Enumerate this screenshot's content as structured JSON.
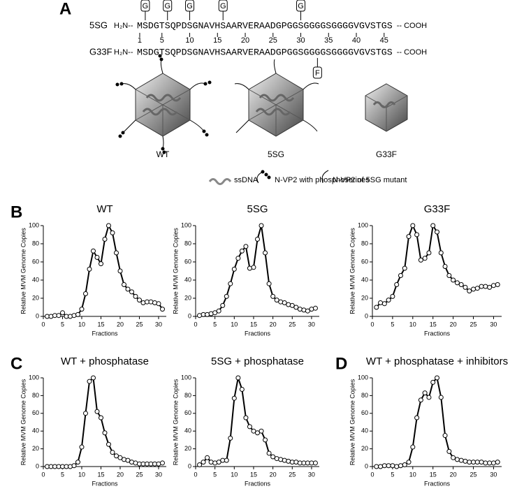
{
  "panel_a": {
    "label": "A",
    "n_term": "H₂N--",
    "c_term": "-- COOH",
    "rows": [
      {
        "name": "5SG",
        "sequence": "MSDGTSQPDSGNAVHSAARVERAADGPGGSGGGGSGGGGVGVSTGS",
        "boxes": [
          {
            "label": "G",
            "position": 2
          },
          {
            "label": "G",
            "position": 6
          },
          {
            "label": "G",
            "position": 10
          },
          {
            "label": "G",
            "position": 16
          },
          {
            "label": "G",
            "position": 30
          }
        ]
      },
      {
        "name": "G33F",
        "sequence": "MSDGTSQPDSGNAVHSAARVERAADGPGGSGGGGSGGGGVGVSTGS",
        "boxes": [
          {
            "label": "F",
            "position": 33
          }
        ]
      }
    ],
    "numbering": [
      1,
      5,
      10,
      15,
      20,
      25,
      30,
      35,
      40,
      45
    ],
    "capsids": [
      "WT",
      "5SG",
      "G33F"
    ],
    "legend": [
      "ssDNA",
      "N-VP2 with phosphoserines",
      "N-VP2 of 5SG mutant"
    ]
  },
  "panel_labels": [
    "B",
    "C",
    "D"
  ],
  "chart_data": [
    {
      "type": "line",
      "title": "WT",
      "x_label": "Fractions",
      "y_label": "Relative MVM Genome Copies",
      "color": "#000000",
      "x": [
        1,
        2,
        3,
        4,
        5,
        6,
        7,
        8,
        9,
        10,
        11,
        12,
        13,
        14,
        15,
        16,
        17,
        18,
        19,
        20,
        21,
        22,
        23,
        24,
        25,
        26,
        27,
        28,
        29,
        30,
        31
      ],
      "values": [
        0,
        0,
        1,
        1,
        4,
        0,
        0,
        1,
        2,
        8,
        25,
        52,
        72,
        65,
        58,
        85,
        100,
        92,
        70,
        50,
        35,
        30,
        27,
        22,
        18,
        15,
        16,
        16,
        15,
        14,
        8
      ],
      "xlim": [
        0,
        32
      ],
      "xticks": [
        0,
        5,
        10,
        15,
        20,
        25,
        30
      ],
      "ylim": [
        0,
        100
      ],
      "yticks": [
        0,
        20,
        40,
        60,
        80,
        100
      ]
    },
    {
      "type": "line",
      "title": "5SG",
      "x_label": "Fractions",
      "y_label": "Relative MVM Genome Copies",
      "color": "#000000",
      "x": [
        1,
        2,
        3,
        4,
        5,
        6,
        7,
        8,
        9,
        10,
        11,
        12,
        13,
        14,
        15,
        16,
        17,
        18,
        19,
        20,
        21,
        22,
        23,
        24,
        25,
        26,
        27,
        28,
        29,
        30,
        31
      ],
      "values": [
        1,
        2,
        2,
        3,
        4,
        6,
        12,
        22,
        36,
        52,
        64,
        72,
        77,
        53,
        54,
        85,
        100,
        70,
        36,
        22,
        18,
        16,
        15,
        13,
        12,
        10,
        8,
        7,
        6,
        8,
        9
      ],
      "xlim": [
        0,
        32
      ],
      "xticks": [
        0,
        5,
        10,
        15,
        20,
        25,
        30
      ],
      "ylim": [
        0,
        100
      ],
      "yticks": [
        0,
        20,
        40,
        60,
        80,
        100
      ]
    },
    {
      "type": "line",
      "title": "G33F",
      "x_label": "Fractions",
      "y_label": "Relative MVM Genome Copies",
      "color": "#000000",
      "x": [
        1,
        2,
        3,
        4,
        5,
        6,
        7,
        8,
        9,
        10,
        11,
        12,
        13,
        14,
        15,
        16,
        17,
        18,
        19,
        20,
        21,
        22,
        23,
        24,
        25,
        26,
        27,
        28,
        29,
        30,
        31
      ],
      "values": [
        10,
        15,
        14,
        18,
        22,
        35,
        45,
        53,
        88,
        100,
        90,
        62,
        64,
        70,
        100,
        93,
        70,
        55,
        45,
        40,
        37,
        35,
        32,
        28,
        30,
        31,
        33,
        33,
        32,
        34,
        35
      ],
      "xlim": [
        0,
        32
      ],
      "xticks": [
        0,
        5,
        10,
        15,
        20,
        25,
        30
      ],
      "ylim": [
        0,
        100
      ],
      "yticks": [
        0,
        20,
        40,
        60,
        80,
        100
      ]
    },
    {
      "type": "line",
      "title": "WT + phosphatase",
      "x_label": "Fractions",
      "y_label": "Relative MVM Genome Copies",
      "color": "#000000",
      "x": [
        1,
        2,
        3,
        4,
        5,
        6,
        7,
        8,
        9,
        10,
        11,
        12,
        13,
        14,
        15,
        16,
        17,
        18,
        19,
        20,
        21,
        22,
        23,
        24,
        25,
        26,
        27,
        28,
        29,
        30,
        31
      ],
      "values": [
        0,
        0,
        0,
        0,
        0,
        0,
        0,
        1,
        5,
        22,
        60,
        96,
        100,
        62,
        55,
        38,
        25,
        16,
        12,
        10,
        8,
        7,
        5,
        4,
        3,
        3,
        3,
        3,
        3,
        3,
        4
      ],
      "xlim": [
        0,
        32
      ],
      "xticks": [
        0,
        5,
        10,
        15,
        20,
        25,
        30
      ],
      "ylim": [
        0,
        100
      ],
      "yticks": [
        0,
        20,
        40,
        60,
        80,
        100
      ]
    },
    {
      "type": "line",
      "title": "5SG + phosphatase",
      "x_label": "Fractions",
      "y_label": "Relative MVM Genome Copies",
      "color": "#000000",
      "x": [
        1,
        2,
        3,
        4,
        5,
        6,
        7,
        8,
        9,
        10,
        11,
        12,
        13,
        14,
        15,
        16,
        17,
        18,
        19,
        20,
        21,
        22,
        23,
        24,
        25,
        26,
        27,
        28,
        29,
        30,
        31
      ],
      "values": [
        2,
        5,
        10,
        5,
        4,
        5,
        7,
        7,
        32,
        77,
        100,
        87,
        55,
        45,
        40,
        38,
        40,
        30,
        15,
        11,
        9,
        8,
        7,
        6,
        5,
        5,
        4,
        4,
        4,
        4,
        4
      ],
      "xlim": [
        0,
        32
      ],
      "xticks": [
        0,
        5,
        10,
        15,
        20,
        25,
        30
      ],
      "ylim": [
        0,
        100
      ],
      "yticks": [
        0,
        20,
        40,
        60,
        80,
        100
      ]
    },
    {
      "type": "line",
      "title": "WT + phosphatase + inhibitors",
      "x_label": "Fractions",
      "y_label": "Relative MVM Genome Copies",
      "color": "#000000",
      "x": [
        1,
        2,
        3,
        4,
        5,
        6,
        7,
        8,
        9,
        10,
        11,
        12,
        13,
        14,
        15,
        16,
        17,
        18,
        19,
        20,
        21,
        22,
        23,
        24,
        25,
        26,
        27,
        28,
        29,
        30,
        31
      ],
      "values": [
        0,
        0,
        1,
        1,
        1,
        0,
        1,
        2,
        5,
        22,
        55,
        75,
        83,
        78,
        95,
        100,
        78,
        35,
        17,
        10,
        8,
        7,
        6,
        5,
        5,
        5,
        5,
        4,
        4,
        4,
        5
      ],
      "xlim": [
        0,
        32
      ],
      "xticks": [
        0,
        5,
        10,
        15,
        20,
        25,
        30
      ],
      "ylim": [
        0,
        100
      ],
      "yticks": [
        0,
        20,
        40,
        60,
        80,
        100
      ]
    }
  ]
}
